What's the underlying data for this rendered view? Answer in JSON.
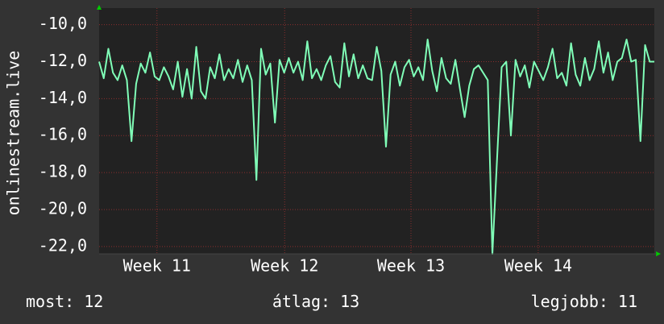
{
  "chart_data": {
    "type": "line",
    "y_label": "onlinestream.live",
    "series": [
      {
        "name": "onlinestream.live",
        "color": "#80ffb8",
        "values": [
          -12.0,
          -12.9,
          -11.3,
          -12.6,
          -13.0,
          -12.2,
          -13.0,
          -16.3,
          -13.2,
          -12.1,
          -12.6,
          -11.5,
          -12.8,
          -13.0,
          -12.3,
          -12.8,
          -13.5,
          -12.0,
          -13.9,
          -12.4,
          -14.0,
          -11.2,
          -13.6,
          -14.0,
          -12.3,
          -12.9,
          -11.6,
          -13.0,
          -12.4,
          -12.9,
          -11.9,
          -13.1,
          -12.2,
          -13.0,
          -18.4,
          -11.3,
          -12.7,
          -12.1,
          -15.3,
          -11.9,
          -12.6,
          -11.8,
          -12.6,
          -12.0,
          -13.0,
          -10.9,
          -12.9,
          -12.4,
          -13.0,
          -12.2,
          -11.7,
          -13.1,
          -13.4,
          -11.0,
          -12.8,
          -11.6,
          -12.9,
          -12.2,
          -12.9,
          -13.0,
          -11.2,
          -12.5,
          -16.6,
          -12.7,
          -12.0,
          -13.3,
          -12.3,
          -11.9,
          -12.8,
          -12.3,
          -13.0,
          -10.8,
          -12.5,
          -13.6,
          -11.8,
          -12.9,
          -13.2,
          -11.9,
          -13.5,
          -15.0,
          -13.3,
          -12.4,
          -12.2,
          -12.6,
          -13.0,
          -22.4,
          -17.3,
          -12.3,
          -12.0,
          -16.0,
          -11.9,
          -12.8,
          -12.2,
          -13.4,
          -12.0,
          -12.5,
          -13.0,
          -12.3,
          -11.3,
          -12.9,
          -12.6,
          -13.3,
          -11.0,
          -12.7,
          -13.3,
          -11.8,
          -13.0,
          -12.4,
          -10.9,
          -12.6,
          -11.5,
          -13.0,
          -12.0,
          -11.8,
          -10.8,
          -12.0,
          -11.9,
          -16.3,
          -11.1,
          -12.0,
          -12.0
        ]
      }
    ],
    "xlim": [
      0,
      120
    ],
    "xticks": [
      {
        "value": 12.5,
        "label": "Week 11"
      },
      {
        "value": 40.1,
        "label": "Week 12"
      },
      {
        "value": 67.4,
        "label": "Week 13"
      },
      {
        "value": 94.9,
        "label": "Week 14"
      }
    ],
    "ylim": [
      -22.4,
      -9.1
    ],
    "yticks": [
      {
        "value": -10,
        "label": "-10,0"
      },
      {
        "value": -12,
        "label": "-12,0"
      },
      {
        "value": -14,
        "label": "-14,0"
      },
      {
        "value": -16,
        "label": "-16,0"
      },
      {
        "value": -18,
        "label": "-18,0"
      },
      {
        "value": -20,
        "label": "-20,0"
      },
      {
        "value": -22,
        "label": "-22,0"
      }
    ],
    "grid": true,
    "legend": [
      {
        "label": "most:",
        "value": 12
      },
      {
        "label": "átlag:",
        "value": 13
      },
      {
        "label": "legjobb:",
        "value": 11
      }
    ]
  }
}
